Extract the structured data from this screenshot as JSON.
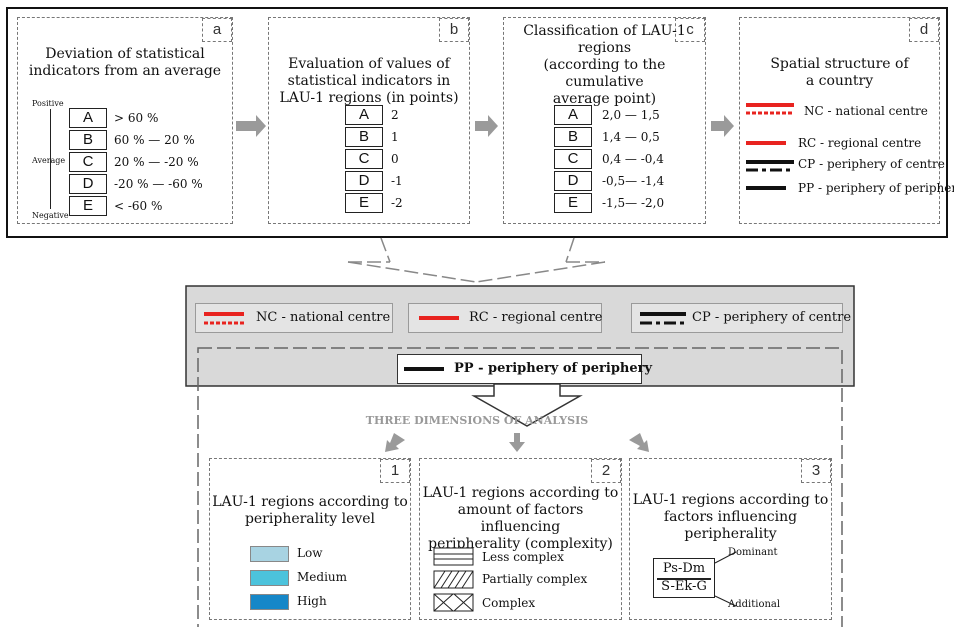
{
  "panel_a": {
    "tag": "a",
    "title": [
      "Deviation of statistical",
      "indicators from an average"
    ],
    "axis_top": "Positive",
    "axis_mid": "Average",
    "axis_bottom": "Negative",
    "rows": [
      {
        "label": "A",
        "value": "> 60 %"
      },
      {
        "label": "B",
        "value": "60 % — 20 %"
      },
      {
        "label": "C",
        "value": "20 % — -20 %"
      },
      {
        "label": "D",
        "value": "-20 % — -60 %"
      },
      {
        "label": "E",
        "value": "< -60 %"
      }
    ]
  },
  "panel_b": {
    "tag": "b",
    "title": [
      "Evaluation of values of",
      "statistical indicators in",
      "LAU-1 regions (in points)"
    ],
    "rows": [
      {
        "label": "A",
        "value": "2"
      },
      {
        "label": "B",
        "value": "1"
      },
      {
        "label": "C",
        "value": "0"
      },
      {
        "label": "D",
        "value": "-1"
      },
      {
        "label": "E",
        "value": "-2"
      }
    ]
  },
  "panel_c": {
    "tag": "c",
    "title": [
      "Classification of LAU-1 regions",
      "(according to the cumulative",
      "average point)"
    ],
    "rows": [
      {
        "label": "A",
        "value": "2,0 — 1,5"
      },
      {
        "label": "B",
        "value": "1,4 — 0,5"
      },
      {
        "label": "C",
        "value": "0,4 — -0,4"
      },
      {
        "label": "D",
        "value": "-0,5— -1,4"
      },
      {
        "label": "E",
        "value": "-1,5— -2,0"
      }
    ]
  },
  "panel_d": {
    "tag": "d",
    "title": [
      "Spatial structure of",
      "a country"
    ],
    "items": [
      {
        "abbr": "NC",
        "text": "NC - national centre"
      },
      {
        "abbr": "RC",
        "text": "RC - regional centre"
      },
      {
        "abbr": "CP",
        "text": "CP - periphery of centre"
      },
      {
        "abbr": "PP",
        "text": "PP - periphery of periphery"
      }
    ]
  },
  "structure_bar": {
    "nc": "NC - national centre",
    "rc": "RC - regional centre",
    "cp": "CP - periphery of centre",
    "pp": "PP - periphery of periphery"
  },
  "analysis_heading": "THREE DIMENSIONS OF ANALYSIS",
  "dim1": {
    "tag": "1",
    "title": [
      "LAU-1 regions according to",
      "peripherality level"
    ],
    "legend": [
      {
        "label": "Low",
        "color": "#a8d3e2"
      },
      {
        "label": "Medium",
        "color": "#4cc3dc"
      },
      {
        "label": "High",
        "color": "#1687c8"
      }
    ]
  },
  "dim2": {
    "tag": "2",
    "title": [
      "LAU-1 regions according to",
      "amount of factors influencing",
      "peripherality (complexity)"
    ],
    "legend": [
      {
        "label": "Less complex",
        "pattern": "horizontal-lines"
      },
      {
        "label": "Partially complex",
        "pattern": "diagonal-hatch"
      },
      {
        "label": "Complex",
        "pattern": "cross-hatch"
      }
    ]
  },
  "dim3": {
    "tag": "3",
    "title": [
      "LAU-1 regions according to",
      "factors influencing",
      "peripherality"
    ],
    "numerator": "Ps-Dm",
    "denominator": "S-Ek-G",
    "dominant": "Dominant",
    "additional": "Additional"
  },
  "colors": {
    "red": "#e8231f",
    "black": "#111111",
    "grey_box": "#d9d9d9",
    "arrow": "#9a9a9a"
  }
}
